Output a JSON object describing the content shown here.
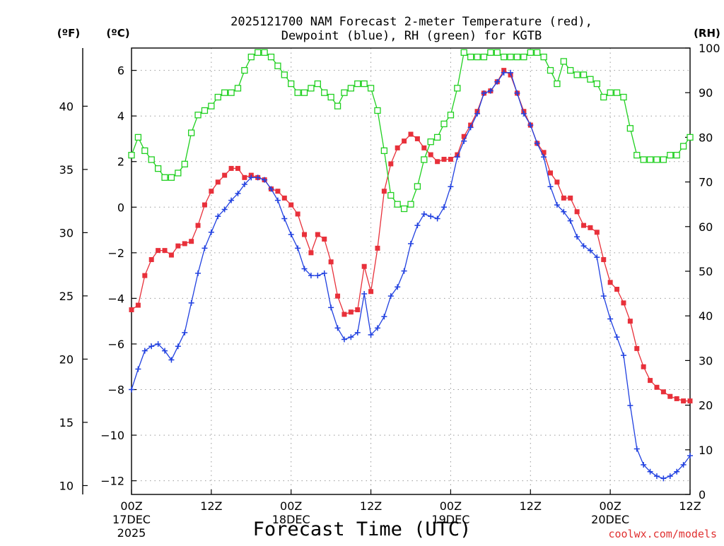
{
  "title_line1": "2025121700 NAM Forecast 2-meter Temperature (red),",
  "title_line2": "Dewpoint (blue), RH (green) for KGTB",
  "xlabel": "Forecast Time (UTC)",
  "credit": "coolwx.com/models",
  "colors": {
    "temperature": "#e8303a",
    "dewpoint": "#2040e0",
    "rh": "#20d020",
    "grid": "#999999",
    "credit": "#e03030"
  },
  "chart_data": {
    "type": "line",
    "axes": {
      "left_f": {
        "unit_label": "(ºF)",
        "ticks": [
          "10",
          "15",
          "20",
          "25",
          "30",
          "35",
          "40"
        ],
        "range": [
          9.3,
          44.6
        ]
      },
      "left_c": {
        "unit_label": "(ºC)",
        "ticks": [
          "−12",
          "−10",
          "−8",
          "−6",
          "−4",
          "−2",
          "0",
          "2",
          "4",
          "6"
        ],
        "range": [
          -12.6,
          6.98
        ]
      },
      "right_rh": {
        "unit_label": "(RH)",
        "ticks": [
          "0",
          "10",
          "20",
          "30",
          "40",
          "50",
          "60",
          "70",
          "80",
          "90",
          "100"
        ],
        "range": [
          0,
          100
        ]
      },
      "x": {
        "range": [
          0,
          84
        ],
        "unit": "hours after 2025121700",
        "ticks": [
          {
            "h": 0,
            "label": "00Z",
            "date": "17DEC",
            "year": "2025"
          },
          {
            "h": 12,
            "label": "12Z",
            "date": "",
            "year": ""
          },
          {
            "h": 24,
            "label": "00Z",
            "date": "18DEC",
            "year": ""
          },
          {
            "h": 36,
            "label": "12Z",
            "date": "",
            "year": ""
          },
          {
            "h": 48,
            "label": "00Z",
            "date": "19DEC",
            "year": ""
          },
          {
            "h": 60,
            "label": "12Z",
            "date": "",
            "year": ""
          },
          {
            "h": 72,
            "label": "00Z",
            "date": "20DEC",
            "year": ""
          },
          {
            "h": 84,
            "label": "12Z",
            "date": "",
            "year": ""
          }
        ]
      }
    },
    "grid": true,
    "series": [
      {
        "name": "Temperature",
        "axis": "left_c",
        "marker": "square",
        "values": [
          [
            0,
            -4.5
          ],
          [
            1,
            -4.3
          ],
          [
            2,
            -3.0
          ],
          [
            3,
            -2.3
          ],
          [
            4,
            -1.9
          ],
          [
            5,
            -1.9
          ],
          [
            6,
            -2.1
          ],
          [
            7,
            -1.7
          ],
          [
            8,
            -1.6
          ],
          [
            9,
            -1.5
          ],
          [
            10,
            -0.8
          ],
          [
            11,
            0.1
          ],
          [
            12,
            0.7
          ],
          [
            13,
            1.1
          ],
          [
            14,
            1.4
          ],
          [
            15,
            1.7
          ],
          [
            16,
            1.7
          ],
          [
            17,
            1.3
          ],
          [
            18,
            1.4
          ],
          [
            19,
            1.3
          ],
          [
            20,
            1.2
          ],
          [
            21,
            0.8
          ],
          [
            22,
            0.7
          ],
          [
            23,
            0.4
          ],
          [
            24,
            0.1
          ],
          [
            25,
            -0.3
          ],
          [
            26,
            -1.2
          ],
          [
            27,
            -2.0
          ],
          [
            28,
            -1.2
          ],
          [
            29,
            -1.4
          ],
          [
            30,
            -2.4
          ],
          [
            31,
            -3.9
          ],
          [
            32,
            -4.7
          ],
          [
            33,
            -4.6
          ],
          [
            34,
            -4.5
          ],
          [
            35,
            -2.6
          ],
          [
            36,
            -3.7
          ],
          [
            37,
            -1.8
          ],
          [
            38,
            0.7
          ],
          [
            39,
            1.9
          ],
          [
            40,
            2.6
          ],
          [
            41,
            2.9
          ],
          [
            42,
            3.2
          ],
          [
            43,
            3.0
          ],
          [
            44,
            2.6
          ],
          [
            45,
            2.3
          ],
          [
            46,
            2.0
          ],
          [
            47,
            2.1
          ],
          [
            48,
            2.1
          ],
          [
            49,
            2.3
          ],
          [
            50,
            3.1
          ],
          [
            51,
            3.6
          ],
          [
            52,
            4.2
          ],
          [
            53,
            5.0
          ],
          [
            54,
            5.1
          ],
          [
            55,
            5.5
          ],
          [
            56,
            6.0
          ],
          [
            57,
            5.8
          ],
          [
            58,
            5.0
          ],
          [
            59,
            4.2
          ],
          [
            60,
            3.6
          ],
          [
            61,
            2.8
          ],
          [
            62,
            2.4
          ],
          [
            63,
            1.5
          ],
          [
            64,
            1.1
          ],
          [
            65,
            0.4
          ],
          [
            66,
            0.4
          ],
          [
            67,
            -0.2
          ],
          [
            68,
            -0.8
          ],
          [
            69,
            -0.9
          ],
          [
            70,
            -1.1
          ],
          [
            71,
            -2.3
          ],
          [
            72,
            -3.3
          ],
          [
            73,
            -3.6
          ],
          [
            74,
            -4.2
          ],
          [
            75,
            -5.0
          ],
          [
            76,
            -6.2
          ],
          [
            77,
            -7.0
          ],
          [
            78,
            -7.6
          ],
          [
            79,
            -7.9
          ],
          [
            80,
            -8.1
          ],
          [
            81,
            -8.3
          ],
          [
            82,
            -8.4
          ],
          [
            83,
            -8.5
          ],
          [
            84,
            -8.5
          ]
        ]
      },
      {
        "name": "Dewpoint",
        "axis": "left_c",
        "marker": "plus",
        "values": [
          [
            0,
            -8.0
          ],
          [
            1,
            -7.1
          ],
          [
            2,
            -6.3
          ],
          [
            3,
            -6.1
          ],
          [
            4,
            -6.0
          ],
          [
            5,
            -6.3
          ],
          [
            6,
            -6.7
          ],
          [
            7,
            -6.1
          ],
          [
            8,
            -5.5
          ],
          [
            9,
            -4.2
          ],
          [
            10,
            -2.9
          ],
          [
            11,
            -1.8
          ],
          [
            12,
            -1.1
          ],
          [
            13,
            -0.4
          ],
          [
            14,
            -0.1
          ],
          [
            15,
            0.3
          ],
          [
            16,
            0.6
          ],
          [
            17,
            1.0
          ],
          [
            18,
            1.3
          ],
          [
            19,
            1.3
          ],
          [
            20,
            1.2
          ],
          [
            21,
            0.8
          ],
          [
            22,
            0.3
          ],
          [
            23,
            -0.5
          ],
          [
            24,
            -1.2
          ],
          [
            25,
            -1.8
          ],
          [
            26,
            -2.7
          ],
          [
            27,
            -3.0
          ],
          [
            28,
            -3.0
          ],
          [
            29,
            -2.9
          ],
          [
            30,
            -4.4
          ],
          [
            31,
            -5.3
          ],
          [
            32,
            -5.8
          ],
          [
            33,
            -5.7
          ],
          [
            34,
            -5.5
          ],
          [
            35,
            -3.8
          ],
          [
            36,
            -5.6
          ],
          [
            37,
            -5.3
          ],
          [
            38,
            -4.8
          ],
          [
            39,
            -3.9
          ],
          [
            40,
            -3.5
          ],
          [
            41,
            -2.8
          ],
          [
            42,
            -1.6
          ],
          [
            43,
            -0.8
          ],
          [
            44,
            -0.3
          ],
          [
            45,
            -0.4
          ],
          [
            46,
            -0.5
          ],
          [
            47,
            0.0
          ],
          [
            48,
            0.9
          ],
          [
            49,
            2.2
          ],
          [
            50,
            2.9
          ],
          [
            51,
            3.5
          ],
          [
            52,
            4.1
          ],
          [
            53,
            5.0
          ],
          [
            54,
            5.1
          ],
          [
            55,
            5.5
          ],
          [
            56,
            5.9
          ],
          [
            57,
            5.9
          ],
          [
            58,
            5.0
          ],
          [
            59,
            4.1
          ],
          [
            60,
            3.6
          ],
          [
            61,
            2.8
          ],
          [
            62,
            2.2
          ],
          [
            63,
            0.9
          ],
          [
            64,
            0.1
          ],
          [
            65,
            -0.2
          ],
          [
            66,
            -0.6
          ],
          [
            67,
            -1.3
          ],
          [
            68,
            -1.7
          ],
          [
            69,
            -1.9
          ],
          [
            70,
            -2.2
          ],
          [
            71,
            -3.9
          ],
          [
            72,
            -4.9
          ],
          [
            73,
            -5.7
          ],
          [
            74,
            -6.5
          ],
          [
            75,
            -8.7
          ],
          [
            76,
            -10.6
          ],
          [
            77,
            -11.3
          ],
          [
            78,
            -11.6
          ],
          [
            79,
            -11.8
          ],
          [
            80,
            -11.9
          ],
          [
            81,
            -11.8
          ],
          [
            82,
            -11.6
          ],
          [
            83,
            -11.3
          ],
          [
            84,
            -10.9
          ]
        ]
      },
      {
        "name": "RH",
        "axis": "right_rh",
        "marker": "open-square",
        "values": [
          [
            0,
            76
          ],
          [
            1,
            80
          ],
          [
            2,
            77
          ],
          [
            3,
            75
          ],
          [
            4,
            73
          ],
          [
            5,
            71
          ],
          [
            6,
            71
          ],
          [
            7,
            72
          ],
          [
            8,
            74
          ],
          [
            9,
            81
          ],
          [
            10,
            85
          ],
          [
            11,
            86
          ],
          [
            12,
            87
          ],
          [
            13,
            89
          ],
          [
            14,
            90
          ],
          [
            15,
            90
          ],
          [
            16,
            91
          ],
          [
            17,
            95
          ],
          [
            18,
            98
          ],
          [
            19,
            99
          ],
          [
            20,
            99
          ],
          [
            21,
            98
          ],
          [
            22,
            96
          ],
          [
            23,
            94
          ],
          [
            24,
            92
          ],
          [
            25,
            90
          ],
          [
            26,
            90
          ],
          [
            27,
            91
          ],
          [
            28,
            92
          ],
          [
            29,
            90
          ],
          [
            30,
            89
          ],
          [
            31,
            87
          ],
          [
            32,
            90
          ],
          [
            33,
            91
          ],
          [
            34,
            92
          ],
          [
            35,
            92
          ],
          [
            36,
            91
          ],
          [
            37,
            86
          ],
          [
            38,
            77
          ],
          [
            39,
            67
          ],
          [
            40,
            65
          ],
          [
            41,
            64
          ],
          [
            42,
            65
          ],
          [
            43,
            69
          ],
          [
            44,
            75
          ],
          [
            45,
            79
          ],
          [
            46,
            80
          ],
          [
            47,
            83
          ],
          [
            48,
            85
          ],
          [
            49,
            91
          ],
          [
            50,
            99
          ],
          [
            51,
            98
          ],
          [
            52,
            98
          ],
          [
            53,
            98
          ],
          [
            54,
            99
          ],
          [
            55,
            99
          ],
          [
            56,
            98
          ],
          [
            57,
            98
          ],
          [
            58,
            98
          ],
          [
            59,
            98
          ],
          [
            60,
            99
          ],
          [
            61,
            99
          ],
          [
            62,
            98
          ],
          [
            63,
            95
          ],
          [
            64,
            92
          ],
          [
            65,
            97
          ],
          [
            66,
            95
          ],
          [
            67,
            94
          ],
          [
            68,
            94
          ],
          [
            69,
            93
          ],
          [
            70,
            92
          ],
          [
            71,
            89
          ],
          [
            72,
            90
          ],
          [
            73,
            90
          ],
          [
            74,
            89
          ],
          [
            75,
            82
          ],
          [
            76,
            76
          ],
          [
            77,
            75
          ],
          [
            78,
            75
          ],
          [
            79,
            75
          ],
          [
            80,
            75
          ],
          [
            81,
            76
          ],
          [
            82,
            76
          ],
          [
            83,
            78
          ],
          [
            84,
            80
          ]
        ]
      }
    ]
  }
}
